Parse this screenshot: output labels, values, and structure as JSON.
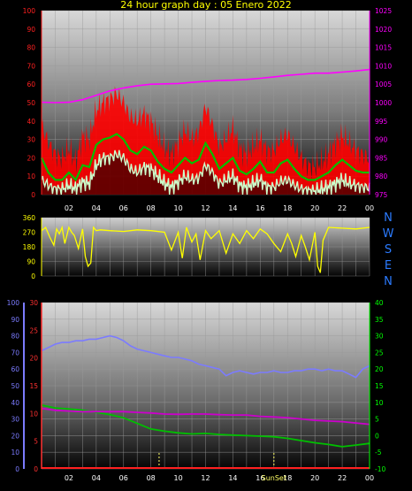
{
  "title": "24 hour graph day : 05 Enero 2022",
  "compass": [
    "N",
    "W",
    "S",
    "E",
    "N"
  ],
  "colors": {
    "wind_gust": "#ff0000",
    "wind_avg": "#00c000",
    "wind_min": "#ccffcc",
    "pressure": "#ff00ff",
    "direction": "#ffff00",
    "humidity": "#7b7bff",
    "temp_scale": "#ff3030",
    "dewpoint_scale": "#00ff00",
    "temperature": "#00c000",
    "dewpoint": "#cc00cc",
    "rain": "#ff2020"
  },
  "chart_data": [
    {
      "type": "line",
      "name": "wind-pressure",
      "xlim": [
        0,
        24
      ],
      "x_ticks": [
        "02",
        "04",
        "06",
        "08",
        "10",
        "12",
        "14",
        "16",
        "18",
        "20",
        "22",
        "00"
      ],
      "y_left": {
        "lim": [
          0,
          100
        ],
        "ticks": [
          "0",
          "10",
          "20",
          "30",
          "40",
          "50",
          "60",
          "70",
          "80",
          "90",
          "100"
        ]
      },
      "y_right": {
        "lim": [
          975,
          1025
        ],
        "ticks": [
          "975",
          "980",
          "985",
          "990",
          "995",
          "1000",
          "1005",
          "1010",
          "1015",
          "1020",
          "1025"
        ]
      },
      "grid": true,
      "wind_profile": {
        "x": [
          0,
          0.5,
          1,
          1.5,
          2,
          2.5,
          3,
          3.5,
          4,
          4.5,
          5,
          5.5,
          6,
          6.5,
          7,
          7.5,
          8,
          8.5,
          9,
          9.5,
          10,
          10.5,
          11,
          11.5,
          12,
          12.5,
          13,
          13.5,
          14,
          14.5,
          15,
          15.5,
          16,
          16.5,
          17,
          17.5,
          18,
          18.5,
          19,
          19.5,
          20,
          20.5,
          21,
          21.5,
          22,
          22.5,
          23,
          23.5,
          24
        ],
        "gust": [
          38,
          28,
          22,
          20,
          25,
          18,
          32,
          30,
          46,
          50,
          52,
          55,
          50,
          42,
          40,
          44,
          40,
          32,
          25,
          22,
          28,
          35,
          30,
          34,
          48,
          38,
          26,
          30,
          36,
          25,
          22,
          26,
          30,
          24,
          24,
          30,
          33,
          26,
          20,
          16,
          15,
          18,
          22,
          28,
          32,
          28,
          24,
          22,
          20
        ],
        "avg": [
          20,
          12,
          8,
          8,
          12,
          8,
          16,
          15,
          27,
          30,
          31,
          33,
          30,
          24,
          22,
          26,
          24,
          18,
          14,
          12,
          16,
          20,
          17,
          19,
          28,
          22,
          14,
          17,
          20,
          13,
          11,
          14,
          18,
          12,
          12,
          17,
          19,
          14,
          10,
          8,
          8,
          10,
          12,
          16,
          19,
          16,
          13,
          12,
          12
        ],
        "min": [
          8,
          5,
          3,
          3,
          5,
          3,
          7,
          6,
          16,
          20,
          20,
          22,
          20,
          14,
          12,
          15,
          14,
          10,
          6,
          4,
          7,
          10,
          8,
          9,
          16,
          12,
          6,
          8,
          10,
          5,
          4,
          6,
          8,
          4,
          4,
          7,
          8,
          5,
          3,
          2,
          2,
          3,
          4,
          6,
          8,
          6,
          5,
          4,
          4
        ]
      },
      "pressure": {
        "x": [
          0,
          1,
          2,
          3,
          4,
          5,
          6,
          7,
          8,
          9,
          10,
          11,
          12,
          13,
          14,
          15,
          16,
          17,
          18,
          19,
          20,
          21,
          22,
          23,
          24
        ],
        "values": [
          1000.1,
          1000,
          1000.1,
          1000.8,
          1002,
          1003.2,
          1004,
          1004.6,
          1005,
          1005.1,
          1005.2,
          1005.5,
          1005.8,
          1006,
          1006.1,
          1006.3,
          1006.6,
          1007,
          1007.4,
          1007.7,
          1008,
          1008,
          1008.3,
          1008.6,
          1009
        ]
      }
    },
    {
      "type": "line",
      "name": "wind-direction",
      "xlim": [
        0,
        24
      ],
      "y_ticks": [
        "0",
        "90",
        "180",
        "270",
        "360"
      ],
      "ylim": [
        0,
        360
      ],
      "grid": true,
      "series": [
        {
          "x": [
            0,
            0.3,
            0.6,
            0.9,
            1.1,
            1.3,
            1.5,
            1.7,
            2,
            2.2,
            2.4,
            2.7,
            3,
            3.2,
            3.4,
            3.6,
            3.8,
            4,
            4.3,
            5,
            6,
            7,
            8,
            9,
            9.5,
            10,
            10.3,
            10.6,
            11,
            11.3,
            11.6,
            12,
            12.4,
            13,
            13.5,
            14,
            14.5,
            15,
            15.5,
            16,
            16.5,
            17,
            17.5,
            18,
            18.3,
            18.6,
            19,
            19.3,
            19.6,
            20,
            20.2,
            20.4,
            20.6,
            21,
            22,
            23,
            24
          ],
          "values": [
            280,
            300,
            240,
            190,
            290,
            260,
            300,
            200,
            300,
            270,
            250,
            170,
            290,
            120,
            60,
            80,
            300,
            280,
            285,
            280,
            275,
            285,
            280,
            270,
            160,
            270,
            110,
            300,
            210,
            260,
            100,
            280,
            230,
            280,
            140,
            260,
            200,
            280,
            230,
            290,
            260,
            200,
            150,
            260,
            200,
            120,
            250,
            180,
            100,
            270,
            60,
            20,
            220,
            300,
            295,
            290,
            300
          ]
        }
      ]
    },
    {
      "type": "line",
      "name": "temperature-humidity",
      "xlim": [
        0,
        24
      ],
      "x_ticks": [
        "02",
        "04",
        "06",
        "08",
        "10",
        "12",
        "14",
        "16",
        "18",
        "20",
        "22",
        "00"
      ],
      "sunset_label": "SunSet",
      "sunset_hour": 17,
      "y_humidity": {
        "lim": [
          0,
          100
        ],
        "ticks": [
          "0",
          "10",
          "20",
          "30",
          "40",
          "50",
          "60",
          "70",
          "80",
          "90",
          "100"
        ]
      },
      "y_temperature": {
        "lim": [
          0,
          30
        ],
        "ticks": [
          "0",
          "5",
          "10",
          "15",
          "20",
          "25",
          "30"
        ]
      },
      "y_dewpoint": {
        "lim": [
          -10,
          40
        ],
        "ticks": [
          "-10",
          "-5",
          "0",
          "5",
          "10",
          "15",
          "20",
          "25",
          "30",
          "35",
          "40"
        ]
      },
      "grid": true,
      "series": [
        {
          "x": [
            0,
            0.5,
            1,
            1.5,
            2,
            2.5,
            3,
            3.5,
            4,
            4.5,
            5,
            5.5,
            6,
            6.5,
            7,
            7.5,
            8,
            8.5,
            9,
            9.5,
            10,
            10.5,
            11,
            11.5,
            12,
            12.5,
            13,
            13.5,
            14,
            14.5,
            15,
            15.5,
            16,
            16.5,
            17,
            17.5,
            18,
            18.5,
            19,
            19.5,
            20,
            20.5,
            21,
            21.5,
            22,
            22.5,
            23,
            23.5,
            24
          ],
          "humidity": [
            71,
            73,
            75,
            76,
            76,
            77,
            77,
            78,
            78,
            79,
            80,
            79,
            77,
            74,
            72,
            71,
            70,
            69,
            68,
            67,
            67,
            66,
            65,
            63,
            62,
            61,
            60,
            56,
            58,
            59,
            58,
            57,
            58,
            58,
            59,
            58,
            58,
            59,
            59,
            60,
            60,
            59,
            60,
            59,
            59,
            57,
            55,
            60,
            62
          ]
        },
        {
          "x": [
            0,
            1,
            2,
            3,
            4,
            5,
            6,
            7,
            8,
            9,
            10,
            11,
            12,
            13,
            14,
            15,
            16,
            17,
            18,
            19,
            20,
            21,
            22,
            23,
            24
          ],
          "temperature": [
            11.5,
            11,
            10.8,
            10.6,
            10.2,
            9.8,
            9.2,
            8.2,
            7.2,
            6.8,
            6.5,
            6.3,
            6.4,
            6.2,
            6.1,
            6.0,
            5.9,
            5.8,
            5.5,
            5.1,
            4.7,
            4.4,
            4.0,
            4.3,
            4.6
          ]
        },
        {
          "x": [
            0,
            1,
            2,
            3,
            4,
            5,
            6,
            7,
            8,
            9,
            10,
            11,
            12,
            13,
            14,
            15,
            16,
            17,
            18,
            19,
            20,
            21,
            22,
            23,
            24
          ],
          "dewpoint": [
            8.2,
            7.6,
            7.4,
            7.2,
            7.2,
            7.2,
            7.2,
            7.0,
            6.8,
            6.5,
            6.4,
            6.5,
            6.5,
            6.3,
            6.2,
            6.2,
            5.8,
            5.6,
            5.4,
            5.0,
            4.6,
            4.4,
            4.2,
            3.8,
            3.4
          ]
        }
      ]
    }
  ]
}
